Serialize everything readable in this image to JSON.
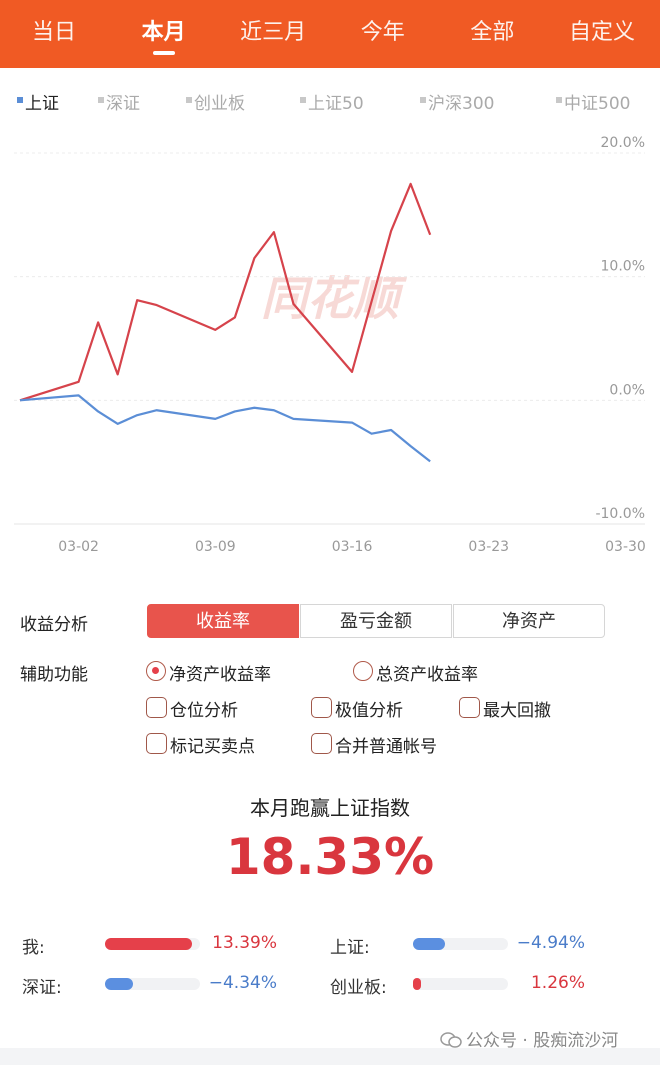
{
  "tabs": {
    "items": [
      "当日",
      "本月",
      "近三月",
      "今年",
      "全部",
      "自定义"
    ],
    "active": 1
  },
  "chart_data": {
    "type": "line",
    "x": [
      -1,
      2,
      3,
      4,
      5,
      6,
      9,
      10,
      11,
      12,
      13,
      16,
      17,
      18,
      19,
      20
    ],
    "xlim": [
      -1,
      31
    ],
    "xticks": [
      {
        "value": 2,
        "label": "03-02"
      },
      {
        "value": 9,
        "label": "03-09"
      },
      {
        "value": 16,
        "label": "03-16"
      },
      {
        "value": 23,
        "label": "03-23"
      },
      {
        "value": 30,
        "label": "03-30"
      }
    ],
    "ylim": [
      -10,
      20
    ],
    "yticks": [
      {
        "value": -10,
        "label": "-10.0%"
      },
      {
        "value": 0,
        "label": "0.0%"
      },
      {
        "value": 10,
        "label": "10.0%"
      },
      {
        "value": 20,
        "label": "20.0%"
      }
    ],
    "grid": true,
    "series": [
      {
        "color": "#d6434b",
        "values": [
          0,
          1.5,
          6.3,
          2.1,
          8.1,
          7.7,
          5.7,
          6.7,
          11.5,
          13.6,
          7.8,
          2.3,
          8.0,
          13.7,
          17.5,
          13.39
        ]
      },
      {
        "name": "上证",
        "color": "#5b8ed6",
        "values": [
          0,
          0.4,
          -0.9,
          -1.9,
          -1.2,
          -0.8,
          -1.5,
          -0.9,
          -0.6,
          -0.8,
          -1.5,
          -1.8,
          -2.7,
          -2.4,
          -3.7,
          -4.94
        ]
      }
    ],
    "other_indices": [
      "深证",
      "创业板",
      "上证50",
      "沪深300",
      "中证500"
    ],
    "watermark": "同花顺"
  },
  "analysis": {
    "label": "收益分析",
    "options": [
      "收益率",
      "盈亏金额",
      "净资产"
    ],
    "active": 0
  },
  "assist": {
    "label": "辅助功能",
    "radios": [
      "净资产收益率",
      "总资产收益率"
    ],
    "selected": 0,
    "checkboxes": [
      "仓位分析",
      "极值分析",
      "最大回撤",
      "标记买卖点",
      "合并普通帐号"
    ]
  },
  "summary": {
    "title": "本月跑赢上证指数",
    "value": "18.33%"
  },
  "comparison": [
    {
      "name": "我:",
      "value": 13.39,
      "label": "13.39%",
      "color": "#e5404a"
    },
    {
      "name": "上证:",
      "value": -4.94,
      "label": "−4.94%",
      "color": "#5b8fe0"
    },
    {
      "name": "深证:",
      "value": -4.34,
      "label": "−4.34%",
      "color": "#5b8fe0"
    },
    {
      "name": "创业板:",
      "value": 1.26,
      "label": "1.26%",
      "color": "#e5404a"
    }
  ],
  "footer": "公众号 · 股痴流沙河"
}
